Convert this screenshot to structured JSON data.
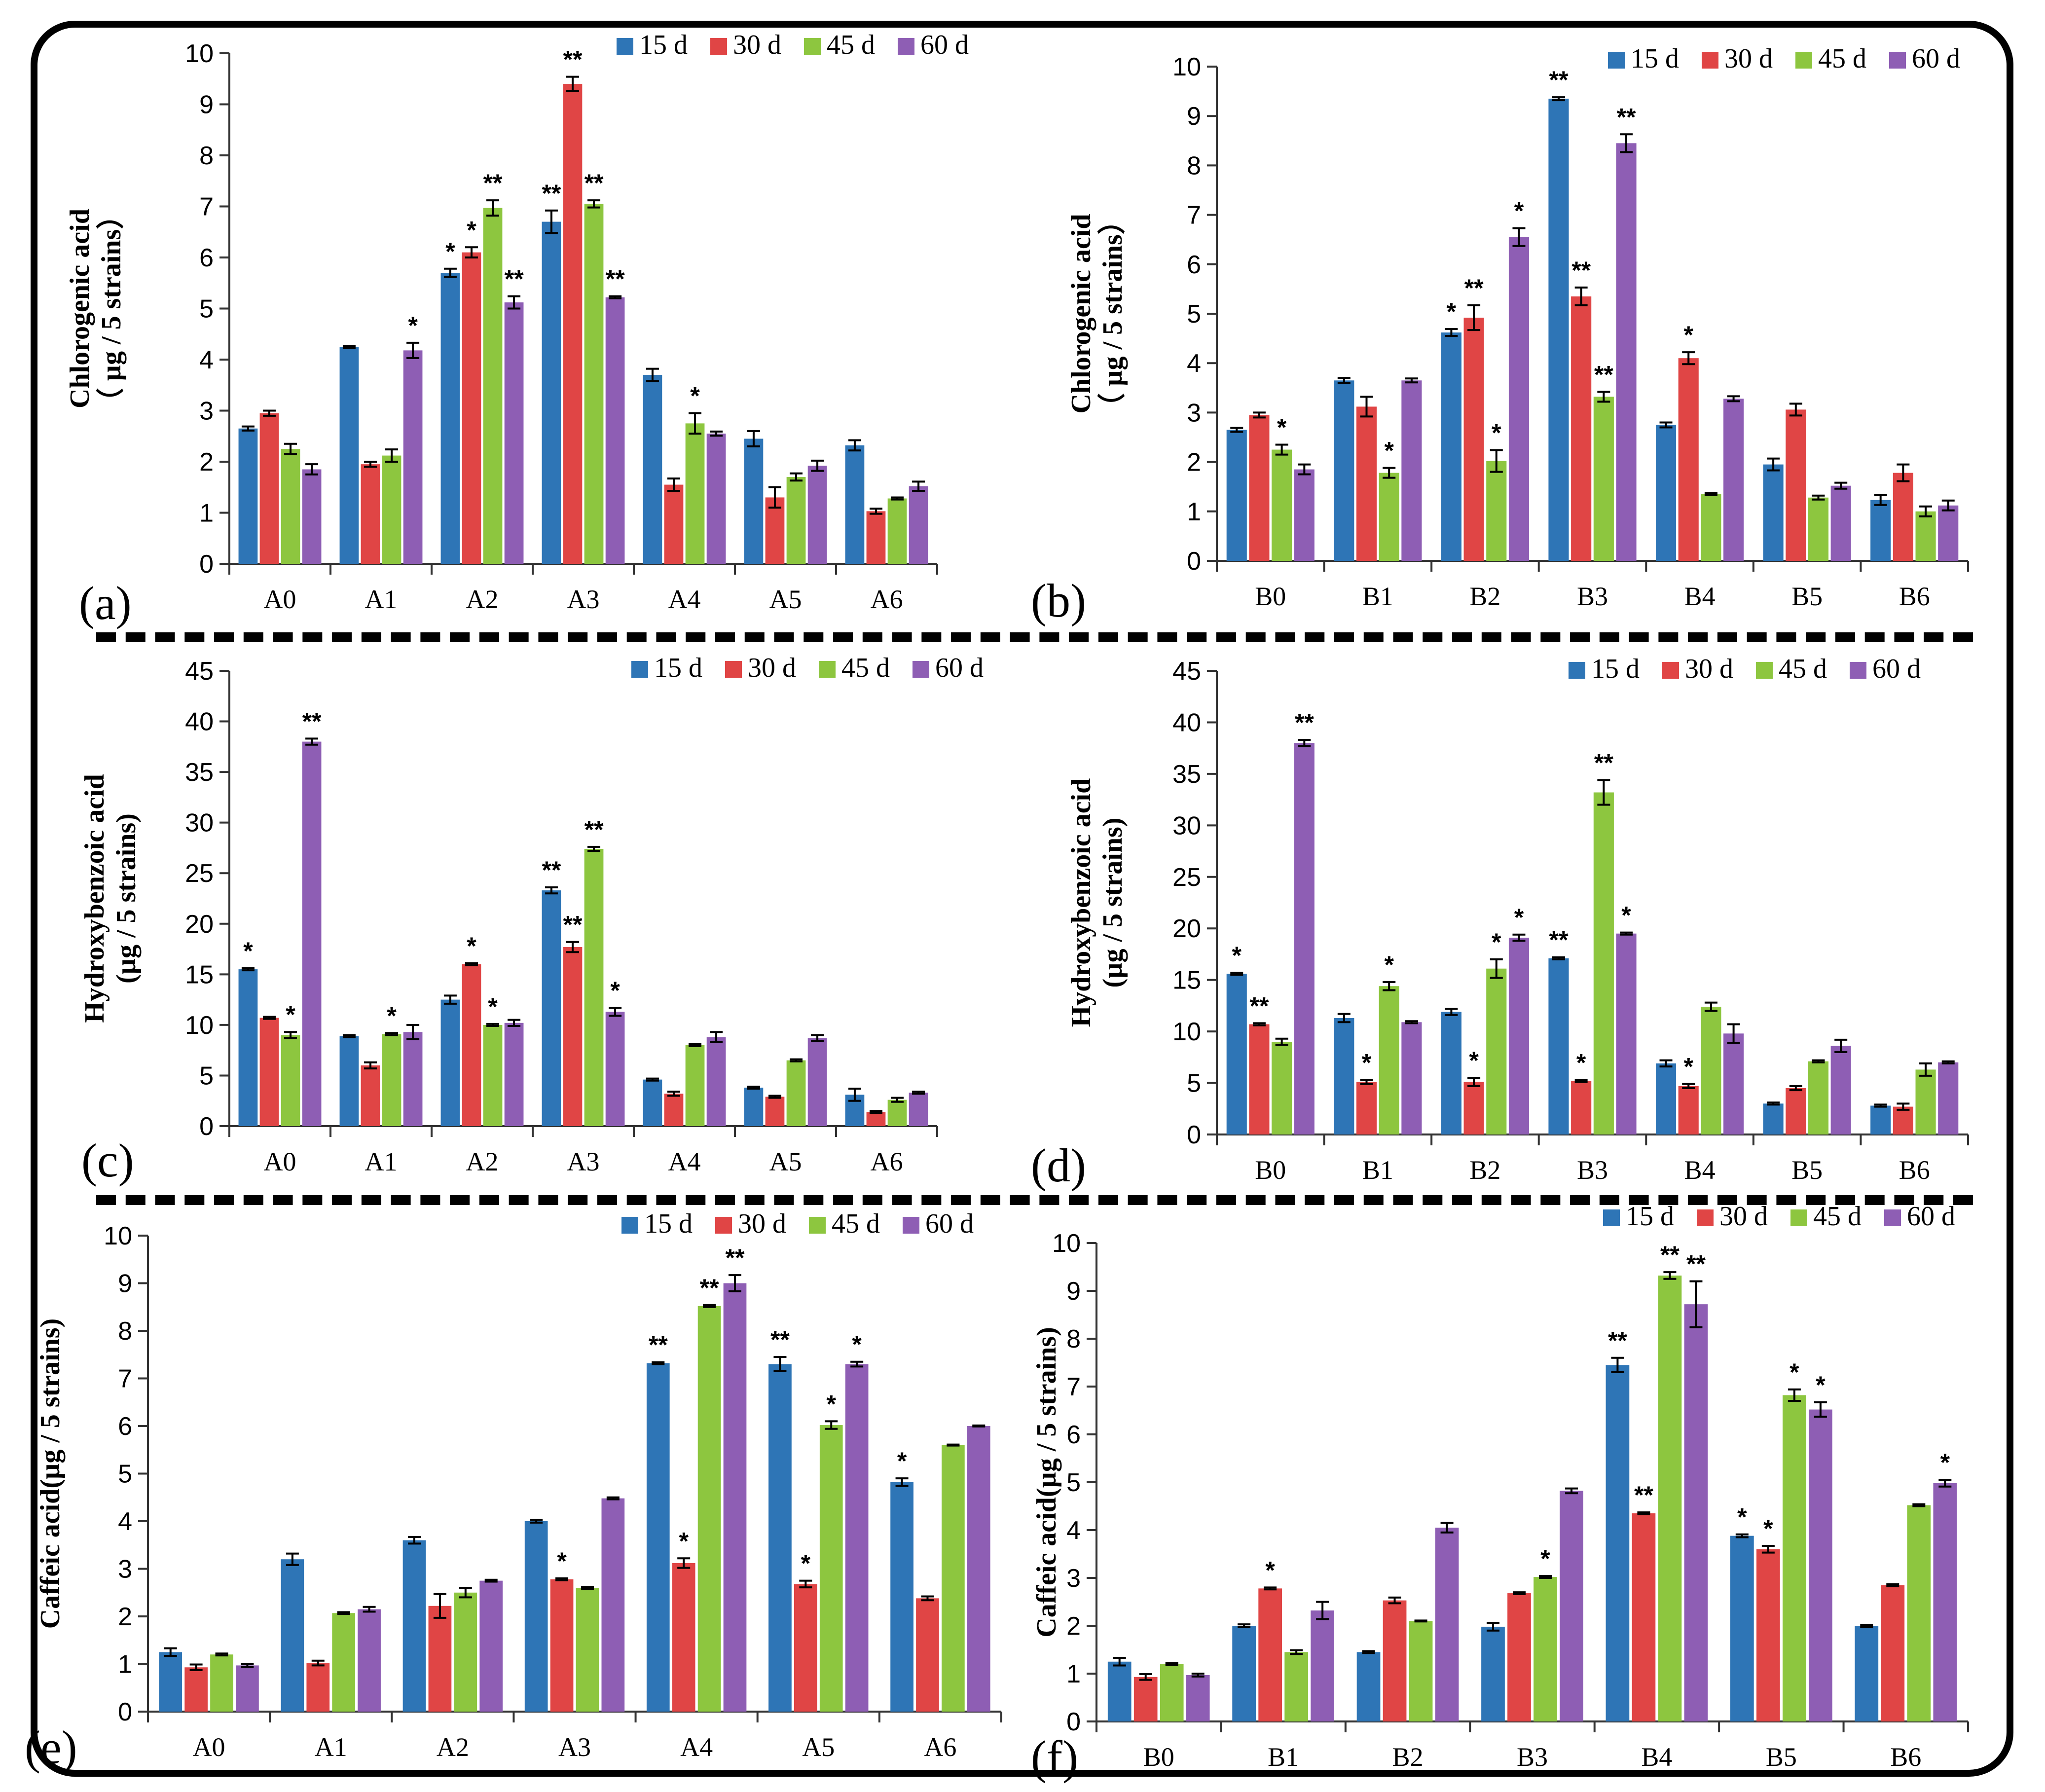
{
  "figure": {
    "legend_labels": [
      "15 d",
      "30 d",
      "45 d",
      "60 d"
    ],
    "series_colors": [
      "#2E75B6",
      "#E04545",
      "#8DC63F",
      "#8E5EB4"
    ]
  },
  "chart_data": [
    {
      "panel": "(a)",
      "type": "bar",
      "ylabel_lines": [
        "Chlorogenic acid",
        "（ µg / 5 strains）"
      ],
      "ylim": [
        0,
        10
      ],
      "yticks": [
        0,
        1,
        2,
        3,
        4,
        5,
        6,
        7,
        8,
        9,
        10
      ],
      "categories": [
        "A0",
        "A1",
        "A2",
        "A3",
        "A4",
        "A5",
        "A6"
      ],
      "series": [
        {
          "name": "15 d",
          "values": [
            2.65,
            4.25,
            5.7,
            6.7,
            3.7,
            2.45,
            2.32
          ],
          "errors": [
            0.04,
            0.02,
            0.08,
            0.22,
            0.12,
            0.15,
            0.1
          ],
          "marks": [
            "",
            "",
            "*",
            "**",
            "",
            "",
            ""
          ]
        },
        {
          "name": "30 d",
          "values": [
            2.95,
            1.95,
            6.1,
            9.4,
            1.55,
            1.3,
            1.03
          ],
          "errors": [
            0.05,
            0.05,
            0.1,
            0.14,
            0.12,
            0.2,
            0.05
          ],
          "marks": [
            "",
            "",
            "*",
            "**",
            "",
            "",
            ""
          ]
        },
        {
          "name": "45 d",
          "values": [
            2.25,
            2.12,
            6.97,
            7.05,
            2.75,
            1.7,
            1.28
          ],
          "errors": [
            0.1,
            0.12,
            0.15,
            0.07,
            0.2,
            0.07,
            0.02
          ],
          "marks": [
            "",
            "",
            "**",
            "**",
            "*",
            "",
            ""
          ]
        },
        {
          "name": "60 d",
          "values": [
            1.85,
            4.18,
            5.12,
            5.22,
            2.55,
            1.92,
            1.52
          ],
          "errors": [
            0.1,
            0.15,
            0.12,
            0.02,
            0.04,
            0.1,
            0.09
          ],
          "marks": [
            "",
            "*",
            "**",
            "**",
            "",
            "",
            ""
          ]
        }
      ]
    },
    {
      "panel": "(b)",
      "type": "bar",
      "ylabel_lines": [
        "Chlorogenic acid",
        "（ µg / 5 strains）"
      ],
      "ylim": [
        0,
        10
      ],
      "yticks": [
        0,
        1,
        2,
        3,
        4,
        5,
        6,
        7,
        8,
        9,
        10
      ],
      "categories": [
        "B0",
        "B1",
        "B2",
        "B3",
        "B4",
        "B5",
        "B6"
      ],
      "series": [
        {
          "name": "15 d",
          "values": [
            2.65,
            3.65,
            4.62,
            9.35,
            2.75,
            1.95,
            1.23
          ],
          "errors": [
            0.04,
            0.05,
            0.07,
            0.03,
            0.05,
            0.12,
            0.1
          ],
          "marks": [
            "",
            "",
            "*",
            "**",
            "",
            "",
            ""
          ]
        },
        {
          "name": "30 d",
          "values": [
            2.95,
            3.12,
            4.92,
            5.35,
            4.1,
            3.06,
            1.78
          ],
          "errors": [
            0.05,
            0.2,
            0.25,
            0.18,
            0.12,
            0.12,
            0.17
          ],
          "marks": [
            "",
            "",
            "**",
            "**",
            "*",
            "",
            ""
          ]
        },
        {
          "name": "45 d",
          "values": [
            2.25,
            1.78,
            2.02,
            3.32,
            1.35,
            1.28,
            1.0
          ],
          "errors": [
            0.1,
            0.1,
            0.22,
            0.1,
            0.02,
            0.04,
            0.1
          ],
          "marks": [
            "*",
            "*",
            "*",
            "**",
            "",
            "",
            ""
          ]
        },
        {
          "name": "60 d",
          "values": [
            1.85,
            3.65,
            6.55,
            8.45,
            3.28,
            1.52,
            1.12
          ],
          "errors": [
            0.1,
            0.04,
            0.18,
            0.18,
            0.05,
            0.06,
            0.1
          ],
          "marks": [
            "",
            "",
            "*",
            "**",
            "",
            "",
            ""
          ]
        }
      ]
    },
    {
      "panel": "(c)",
      "type": "bar",
      "ylabel_lines": [
        "Hydroxybenzoic acid",
        "(µg / 5 strains)"
      ],
      "ylim": [
        0,
        45
      ],
      "yticks": [
        0,
        5,
        10,
        15,
        20,
        25,
        30,
        35,
        40,
        45
      ],
      "categories": [
        "A0",
        "A1",
        "A2",
        "A3",
        "A4",
        "A5",
        "A6"
      ],
      "series": [
        {
          "name": "15 d",
          "values": [
            15.5,
            8.9,
            12.5,
            23.3,
            4.6,
            3.8,
            3.1
          ],
          "errors": [
            0.1,
            0.1,
            0.4,
            0.3,
            0.1,
            0.1,
            0.6
          ],
          "marks": [
            "*",
            "",
            "",
            "**",
            "",
            "",
            ""
          ]
        },
        {
          "name": "30 d",
          "values": [
            10.7,
            6.0,
            16.0,
            17.7,
            3.2,
            2.9,
            1.4
          ],
          "errors": [
            0.1,
            0.3,
            0.1,
            0.5,
            0.2,
            0.1,
            0.1
          ],
          "marks": [
            "",
            "",
            "*",
            "**",
            "",
            "",
            ""
          ]
        },
        {
          "name": "45 d",
          "values": [
            9.0,
            9.1,
            10.0,
            27.4,
            8.0,
            6.5,
            2.6
          ],
          "errors": [
            0.3,
            0.1,
            0.1,
            0.2,
            0.1,
            0.1,
            0.2
          ],
          "marks": [
            "*",
            "*",
            "*",
            "**",
            "",
            "",
            ""
          ]
        },
        {
          "name": "60 d",
          "values": [
            38.0,
            9.3,
            10.2,
            11.3,
            8.8,
            8.7,
            3.3
          ],
          "errors": [
            0.3,
            0.7,
            0.3,
            0.4,
            0.5,
            0.3,
            0.1
          ],
          "marks": [
            "**",
            "",
            "",
            "*",
            "",
            "",
            ""
          ]
        }
      ]
    },
    {
      "panel": "(d)",
      "type": "bar",
      "ylabel_lines": [
        "Hydroxybenzoic acid",
        "(µg / 5 strains)"
      ],
      "ylim": [
        0,
        45
      ],
      "yticks": [
        0,
        5,
        10,
        15,
        20,
        25,
        30,
        35,
        40,
        45
      ],
      "categories": [
        "B0",
        "B1",
        "B2",
        "B3",
        "B4",
        "B5",
        "B6"
      ],
      "series": [
        {
          "name": "15 d",
          "values": [
            15.6,
            11.3,
            11.9,
            17.1,
            6.9,
            3.0,
            2.8
          ],
          "errors": [
            0.1,
            0.4,
            0.3,
            0.1,
            0.3,
            0.1,
            0.1
          ],
          "marks": [
            "*",
            "",
            "",
            "**",
            "",
            "",
            ""
          ]
        },
        {
          "name": "30 d",
          "values": [
            10.7,
            5.1,
            5.1,
            5.2,
            4.7,
            4.5,
            2.7
          ],
          "errors": [
            0.1,
            0.2,
            0.4,
            0.1,
            0.2,
            0.2,
            0.3
          ],
          "marks": [
            "**",
            "*",
            "*",
            "*",
            "*",
            "",
            ""
          ]
        },
        {
          "name": "45 d",
          "values": [
            9.0,
            14.4,
            16.1,
            33.2,
            12.4,
            7.1,
            6.3
          ],
          "errors": [
            0.3,
            0.4,
            0.9,
            1.2,
            0.4,
            0.1,
            0.6
          ],
          "marks": [
            "",
            "*",
            "*",
            "**",
            "",
            "",
            ""
          ]
        },
        {
          "name": "60 d",
          "values": [
            38.0,
            10.9,
            19.1,
            19.5,
            9.8,
            8.6,
            7.0
          ],
          "errors": [
            0.3,
            0.1,
            0.3,
            0.1,
            0.9,
            0.6,
            0.1
          ],
          "marks": [
            "**",
            "",
            "*",
            "*",
            "",
            "",
            ""
          ]
        }
      ]
    },
    {
      "panel": "(e)",
      "type": "bar",
      "ylabel_lines": [
        "Caffeic acid(µg / 5 strains)"
      ],
      "ylim": [
        0,
        10
      ],
      "yticks": [
        0,
        1,
        2,
        3,
        4,
        5,
        6,
        7,
        8,
        9,
        10
      ],
      "categories": [
        "A0",
        "A1",
        "A2",
        "A3",
        "A4",
        "A5",
        "A6"
      ],
      "series": [
        {
          "name": "15 d",
          "values": [
            1.25,
            3.2,
            3.6,
            4.0,
            7.32,
            7.3,
            4.82
          ],
          "errors": [
            0.08,
            0.12,
            0.07,
            0.03,
            0.02,
            0.15,
            0.08
          ],
          "marks": [
            "",
            "",
            "",
            "",
            "**",
            "**",
            "*"
          ]
        },
        {
          "name": "30 d",
          "values": [
            0.93,
            1.02,
            2.22,
            2.78,
            3.12,
            2.68,
            2.38
          ],
          "errors": [
            0.06,
            0.05,
            0.25,
            0.02,
            0.1,
            0.07,
            0.04
          ],
          "marks": [
            "",
            "",
            "",
            "*",
            "*",
            "*",
            ""
          ]
        },
        {
          "name": "45 d",
          "values": [
            1.2,
            2.07,
            2.5,
            2.6,
            8.52,
            6.02,
            5.6
          ],
          "errors": [
            0.02,
            0.02,
            0.1,
            0.02,
            0.02,
            0.08,
            0.01
          ],
          "marks": [
            "",
            "",
            "",
            "",
            "**",
            "*",
            ""
          ]
        },
        {
          "name": "60 d",
          "values": [
            0.97,
            2.15,
            2.75,
            4.48,
            9.0,
            7.3,
            6.0
          ],
          "errors": [
            0.03,
            0.05,
            0.02,
            0.02,
            0.17,
            0.05,
            0.01
          ],
          "marks": [
            "",
            "",
            "",
            "",
            "**",
            "*",
            ""
          ]
        }
      ]
    },
    {
      "panel": "(f)",
      "type": "bar",
      "ylabel_lines": [
        "Caffeic acid(µg / 5 strains)"
      ],
      "ylim": [
        0,
        10
      ],
      "yticks": [
        0,
        1,
        2,
        3,
        4,
        5,
        6,
        7,
        8,
        9,
        10
      ],
      "categories": [
        "B0",
        "B1",
        "B2",
        "B3",
        "B4",
        "B5",
        "B6"
      ],
      "series": [
        {
          "name": "15 d",
          "values": [
            1.25,
            2.0,
            1.45,
            1.98,
            7.45,
            3.88,
            2.0
          ],
          "errors": [
            0.08,
            0.03,
            0.02,
            0.08,
            0.15,
            0.03,
            0.02
          ],
          "marks": [
            "",
            "",
            "",
            "",
            "**",
            "*",
            ""
          ]
        },
        {
          "name": "30 d",
          "values": [
            0.93,
            2.78,
            2.53,
            2.68,
            4.35,
            3.6,
            2.85
          ],
          "errors": [
            0.06,
            0.02,
            0.06,
            0.02,
            0.02,
            0.07,
            0.02
          ],
          "marks": [
            "",
            "*",
            "",
            "",
            "**",
            "*",
            ""
          ]
        },
        {
          "name": "45 d",
          "values": [
            1.2,
            1.45,
            2.1,
            3.02,
            9.32,
            6.82,
            4.52
          ],
          "errors": [
            0.02,
            0.04,
            0.01,
            0.02,
            0.07,
            0.12,
            0.02
          ],
          "marks": [
            "",
            "",
            "",
            "*",
            "**",
            "*",
            ""
          ]
        },
        {
          "name": "60 d",
          "values": [
            0.97,
            2.32,
            4.05,
            4.82,
            8.72,
            6.52,
            4.98
          ],
          "errors": [
            0.03,
            0.18,
            0.1,
            0.05,
            0.48,
            0.15,
            0.07
          ],
          "marks": [
            "",
            "",
            "",
            "",
            "**",
            "*",
            "*"
          ]
        }
      ]
    }
  ]
}
